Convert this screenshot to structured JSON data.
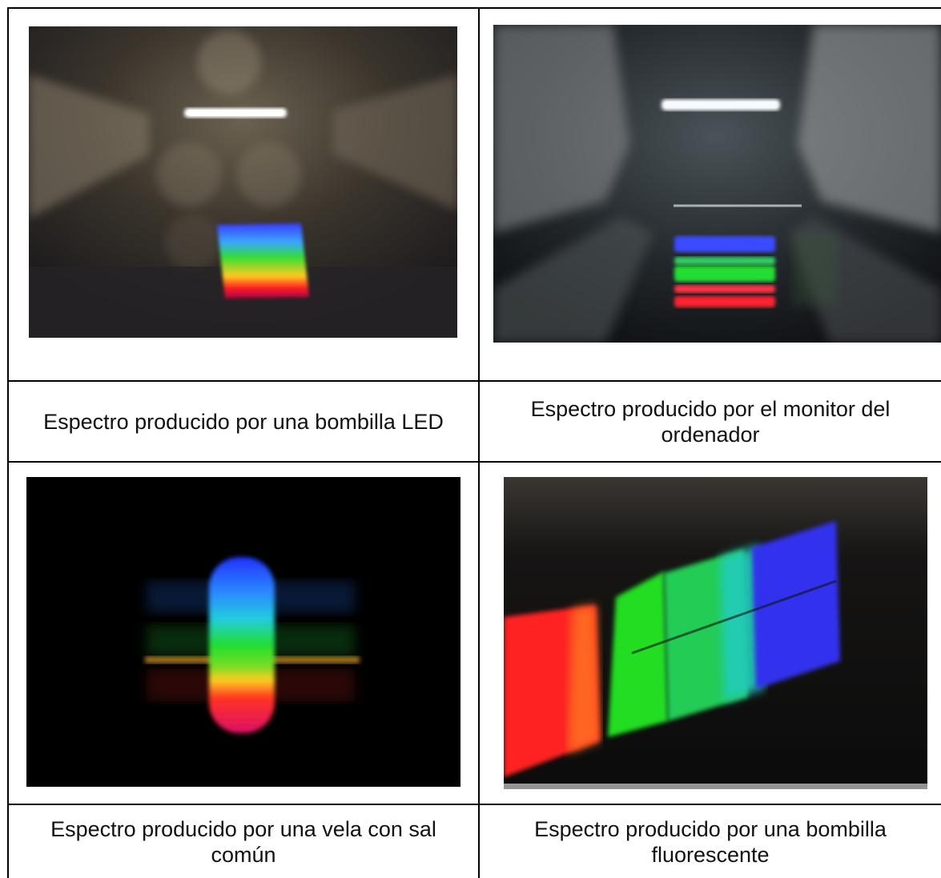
{
  "table": {
    "rows": [
      {
        "cells": [
          {
            "photo": "led-bulb-spectrum-photo",
            "caption": "Espectro producido por una bombilla LED"
          },
          {
            "photo": "computer-monitor-spectrum-photo",
            "caption": "Espectro producido por el monitor del\nordenador"
          }
        ]
      },
      {
        "cells": [
          {
            "photo": "candle-with-salt-spectrum-photo",
            "caption": "Espectro producido por una vela con sal\ncomún"
          },
          {
            "photo": "fluorescent-bulb-spectrum-photo",
            "caption": "Espectro producido por una bombilla\nfluorescente"
          }
        ]
      }
    ]
  },
  "colors": {
    "border": "#000000",
    "background": "#ffffff",
    "spectrum_red": "#ff2a2a",
    "spectrum_green": "#22dd33",
    "spectrum_blue": "#3344ff"
  }
}
